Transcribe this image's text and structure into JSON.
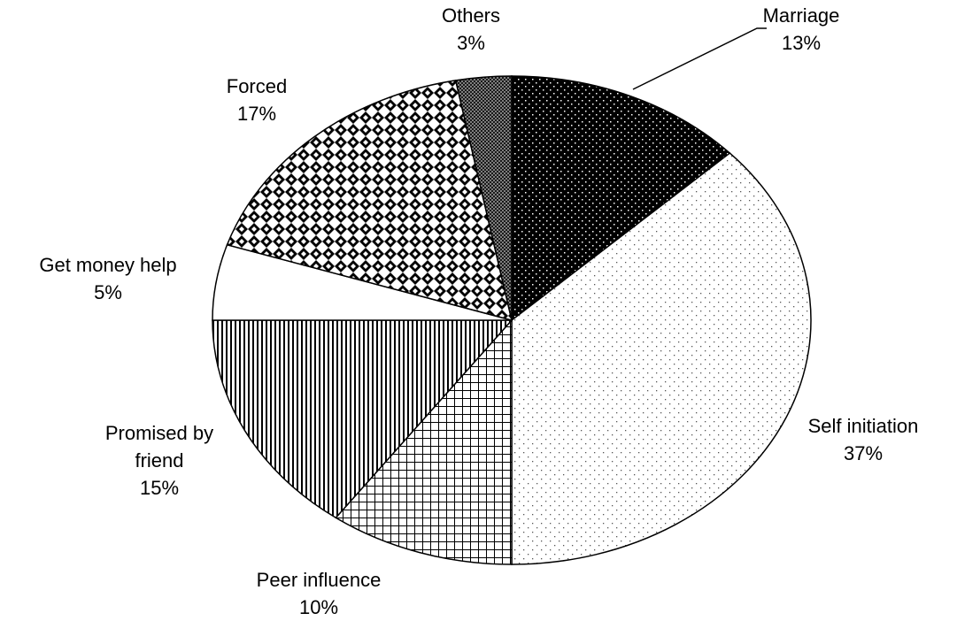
{
  "chart_data": {
    "type": "pie",
    "categories": [
      "Marriage",
      "Self initiation",
      "Peer influence",
      "Promised by friend",
      "Get money help",
      "Forced",
      "Others"
    ],
    "values": [
      13,
      37,
      10,
      15,
      5,
      17,
      3
    ],
    "value_labels": [
      "13%",
      "37%",
      "10%",
      "15%",
      "5%",
      "17%",
      "3%"
    ]
  }
}
